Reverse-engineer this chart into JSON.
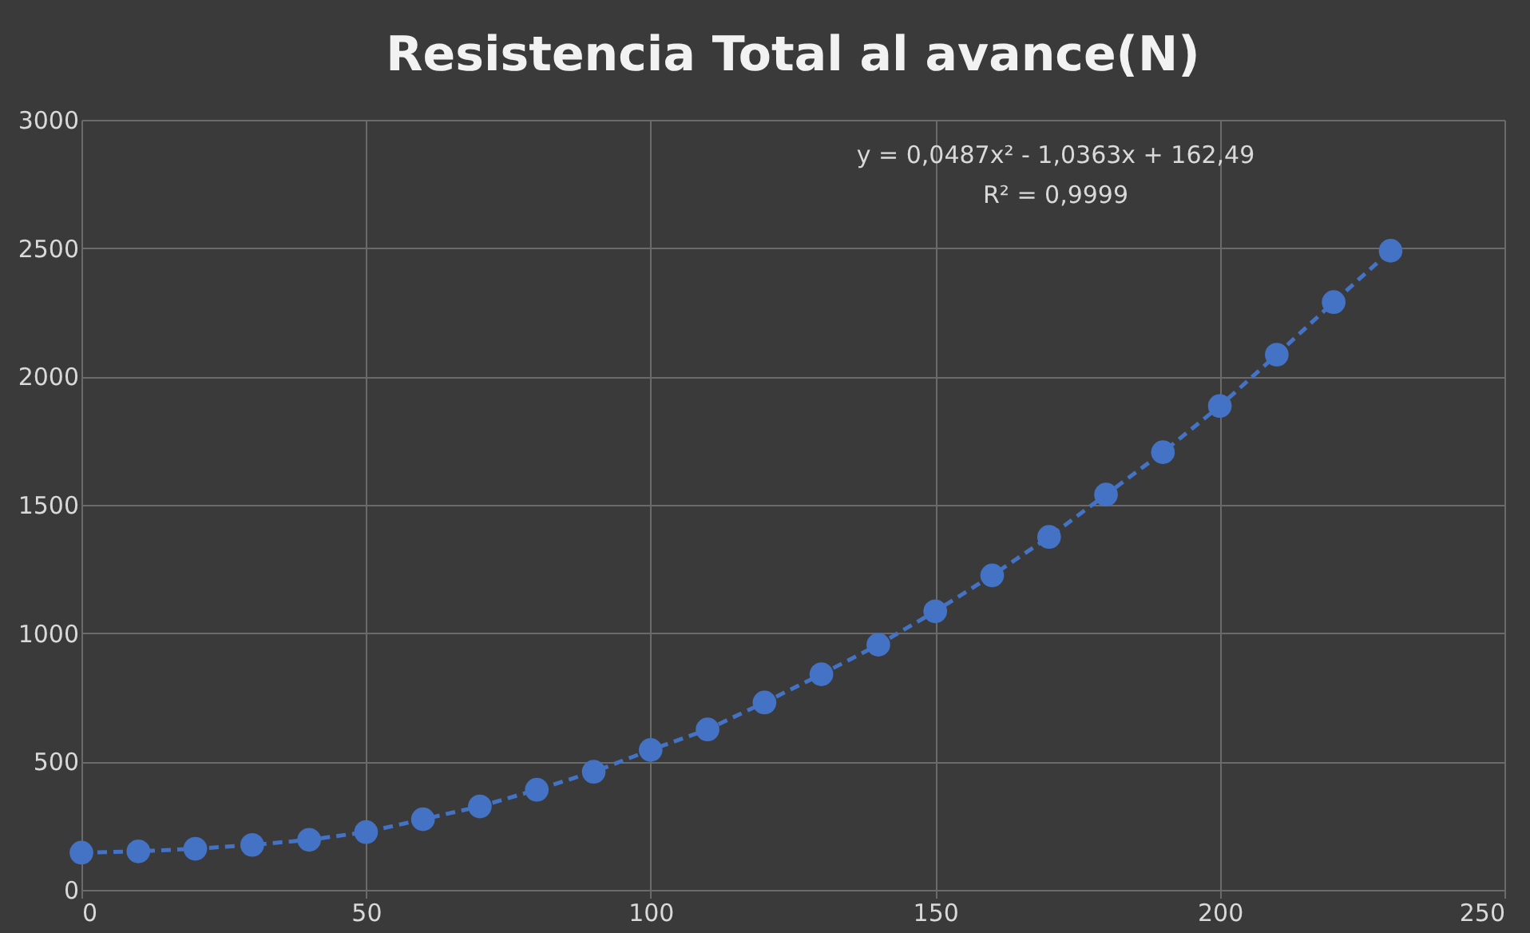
{
  "chart_data": {
    "type": "line",
    "title": "Resistencia Total al avance(N)",
    "x": [
      0,
      10,
      20,
      30,
      40,
      50,
      60,
      70,
      80,
      90,
      100,
      110,
      120,
      130,
      140,
      150,
      160,
      170,
      180,
      190,
      200,
      210,
      220,
      230
    ],
    "series": [
      {
        "color": "#4472c4",
        "values": [
          145,
          150,
          160,
          175,
          195,
          225,
          275,
          325,
          390,
          460,
          545,
          625,
          730,
          840,
          955,
          1085,
          1225,
          1375,
          1540,
          1705,
          1885,
          2085,
          2290,
          2490
        ]
      }
    ],
    "xlim": [
      0,
      250
    ],
    "xticks": [
      0,
      50,
      100,
      150,
      200,
      250
    ],
    "ylim": [
      0,
      3000
    ],
    "yticks": [
      0,
      500,
      1000,
      1500,
      2000,
      2500,
      3000
    ],
    "grid": true,
    "marker": "circle",
    "line_style": "dashed",
    "annotations": [
      "y = 0,0487x² - 1,0363x + 162,49",
      "R² = 0,9999"
    ]
  }
}
